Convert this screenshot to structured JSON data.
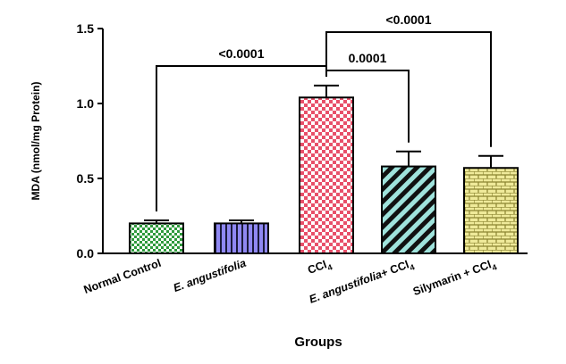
{
  "chart_data": {
    "type": "bar",
    "xlabel": "Groups",
    "ylabel": "MDA (nmol/mg Protein)",
    "ylim": [
      0,
      1.5
    ],
    "yticks": [
      "0.0",
      "0.5",
      "1.0",
      "1.5"
    ],
    "categories": [
      {
        "name": "Normal Control",
        "italic": false,
        "sub": ""
      },
      {
        "name": "E. angustifolia",
        "italic": true,
        "sub": ""
      },
      {
        "name": "CCl",
        "italic": false,
        "sub": "4"
      },
      {
        "name": "E. angustifolia+ CCl",
        "italic_part": "E. angustifolia",
        "rest": "+ CCl",
        "sub": "4"
      },
      {
        "name": "Silymarin + CCl",
        "italic": false,
        "sub": "4"
      }
    ],
    "values": [
      0.2,
      0.2,
      1.04,
      0.58,
      0.57
    ],
    "errors": [
      0.02,
      0.02,
      0.08,
      0.1,
      0.08
    ],
    "colors": [
      "#2e9a3c",
      "#6a60e8",
      "#e8506a",
      "#3fb8b0",
      "#c8c040"
    ],
    "patterns": [
      "checker-fine",
      "vertical-stripes",
      "checker",
      "diagonal-stripes",
      "brick"
    ],
    "grid": false,
    "significance": [
      {
        "from": 0,
        "to": 2,
        "label": "<0.0001"
      },
      {
        "from": 2,
        "to": 3,
        "label": "0.0001"
      },
      {
        "from": 2,
        "to": 4,
        "label": "<0.0001"
      }
    ]
  }
}
